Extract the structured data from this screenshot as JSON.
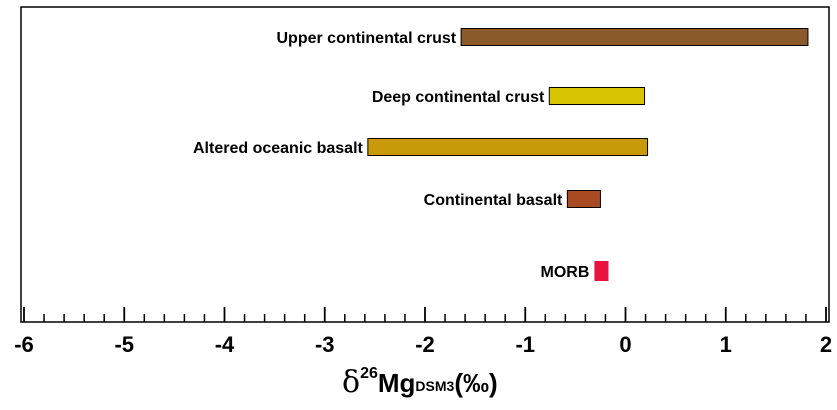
{
  "chart_data": {
    "type": "bar",
    "orientation": "horizontal-range",
    "title": "",
    "xlabel": {
      "symbol": "δ",
      "superscript": "26",
      "main": "Mg",
      "subscript": "DSM3",
      "unit": "(‰)"
    },
    "xlim": [
      -6,
      2
    ],
    "xticks": [
      "-6",
      "-5",
      "-4",
      "-3",
      "-2",
      "-1",
      "0",
      "1",
      "2"
    ],
    "grid": false,
    "legend": "none",
    "ranges": [
      {
        "label": "Upper continental crust",
        "min": -1.64,
        "max": 1.82,
        "color": "#8B5A2B"
      },
      {
        "label": "Deep continental crust",
        "min": -0.76,
        "max": 0.19,
        "color": "#D8C400"
      },
      {
        "label": "Altered oceanic basalt",
        "min": -2.57,
        "max": 0.22,
        "color": "#C89A0A"
      },
      {
        "label": "Continental basalt",
        "min": -0.58,
        "max": -0.25,
        "color": "#A94A22"
      },
      {
        "label": "MORB",
        "min": -0.31,
        "max": -0.17,
        "color": "#E8133F"
      }
    ]
  }
}
